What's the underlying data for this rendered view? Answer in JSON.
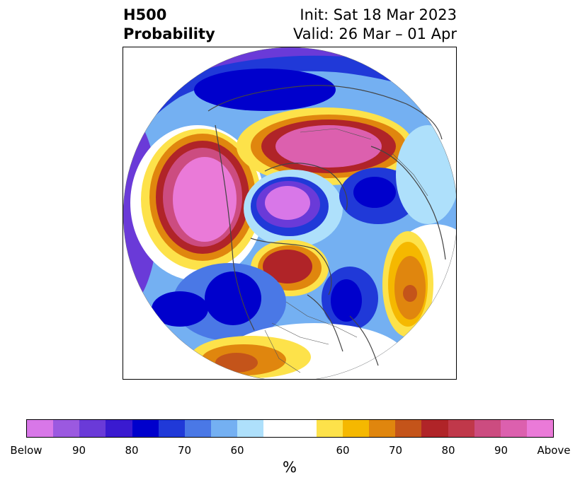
{
  "title": {
    "left_line1": "H500",
    "left_line2": "Probability",
    "right_line1": "Init: Sat 18 Mar 2023",
    "right_line2": "Valid: 26 Mar – 01 Apr"
  },
  "colorbar": {
    "unit": "%",
    "colors": [
      "#d877e8",
      "#9b59e0",
      "#6a3ad8",
      "#3a1ad0",
      "#0000cc",
      "#2039d8",
      "#4a78e6",
      "#74b0f2",
      "#aee0fb",
      "#ffffff",
      "#ffffff",
      "#fde24a",
      "#f5b800",
      "#e0860e",
      "#c4541a",
      "#b02428",
      "#c0384a",
      "#cc4c80",
      "#dc60ae",
      "#ea7ad8"
    ],
    "tick_labels": [
      "Below",
      "90",
      "80",
      "70",
      "60",
      "60",
      "70",
      "80",
      "90",
      "Above"
    ]
  },
  "map": {
    "projection": "north-polar-stereographic",
    "colors": {
      "purple": "#d877e8",
      "blue_strong": "#0000cc",
      "blue_mid": "#4a78e6",
      "blue_light": "#aee0fb",
      "yellow": "#fde24a",
      "orange": "#e0860e",
      "red": "#b02428",
      "pink": "#dc60ae"
    }
  }
}
